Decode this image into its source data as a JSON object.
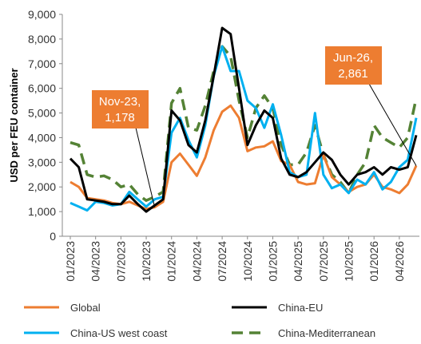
{
  "chart_data": {
    "type": "line",
    "y_label": "USD per FEU container",
    "categories": [
      "01/2023",
      null,
      null,
      "04/2023",
      null,
      null,
      "07/2023",
      null,
      null,
      "10/2023",
      null,
      null,
      "01/2024",
      null,
      null,
      "04/2024",
      null,
      null,
      "07/2024",
      null,
      null,
      "10/2024",
      null,
      null,
      "01/2025",
      null,
      null,
      "04/2025",
      null,
      null,
      "07/2025",
      null,
      null,
      "10/2025",
      null,
      null,
      "01/2026",
      null,
      null,
      "04/2026",
      null,
      null
    ],
    "series": [
      {
        "name": "Global",
        "color": "#ED7D31",
        "dash": false,
        "values": [
          2200,
          2000,
          1550,
          1500,
          1450,
          1350,
          1300,
          1400,
          1250,
          1100,
          1178,
          1400,
          3000,
          3350,
          2900,
          2450,
          3200,
          4300,
          5050,
          5300,
          4800,
          3450,
          3600,
          3650,
          3850,
          3050,
          2900,
          2200,
          2100,
          2150,
          3300,
          2400,
          2100,
          1800,
          2000,
          2100,
          2500,
          2000,
          1900,
          1750,
          2100,
          2861
        ]
      },
      {
        "name": "China-EU",
        "color": "#000000",
        "dash": false,
        "values": [
          3150,
          2800,
          1500,
          1450,
          1400,
          1300,
          1300,
          1650,
          1300,
          1000,
          1250,
          1500,
          5100,
          4700,
          3700,
          3400,
          4700,
          6500,
          8450,
          8200,
          6000,
          3700,
          4500,
          5100,
          4800,
          3150,
          2500,
          2400,
          2600,
          3000,
          3400,
          3100,
          2500,
          2100,
          2500,
          2600,
          2800,
          2500,
          2800,
          2700,
          2800,
          4100
        ]
      },
      {
        "name": "China-US west coast",
        "color": "#00B0F0",
        "dash": false,
        "values": [
          1350,
          1200,
          1050,
          1400,
          1350,
          1250,
          1300,
          1800,
          1500,
          1200,
          1500,
          1600,
          4200,
          4800,
          3900,
          3200,
          4500,
          6500,
          7700,
          6700,
          6700,
          5500,
          5200,
          4400,
          5350,
          4100,
          2600,
          2400,
          2500,
          5000,
          2500,
          1950,
          2100,
          1750,
          2300,
          2100,
          2600,
          1900,
          2200,
          2800,
          3100,
          4800
        ]
      },
      {
        "name": "China-Mediterranean",
        "color": "#548235",
        "dash": true,
        "values": [
          3800,
          3700,
          2500,
          2400,
          2450,
          2300,
          2000,
          2100,
          1700,
          1450,
          1600,
          1800,
          5400,
          6000,
          4400,
          4300,
          5300,
          6700,
          7700,
          7300,
          5500,
          4000,
          5200,
          5700,
          5200,
          3700,
          2900,
          2900,
          3400,
          4500,
          3300,
          2500,
          2200,
          1750,
          2500,
          3000,
          4500,
          4000,
          3800,
          3600,
          4000,
          5600
        ]
      }
    ],
    "ylim": [
      0,
      9000
    ],
    "yticks": [
      0,
      {
        "value": 1000,
        "label": "1,000"
      },
      {
        "value": 2000,
        "label": "2,000"
      },
      {
        "value": 3000,
        "label": "3,000"
      },
      {
        "value": 4000,
        "label": "4,000"
      },
      {
        "value": 5000,
        "label": "5,000"
      },
      {
        "value": 6000,
        "label": "6,000"
      },
      {
        "value": 7000,
        "label": "7,000"
      },
      {
        "value": 8000,
        "label": "8,000"
      },
      {
        "value": 9000,
        "label": "9,000"
      }
    ],
    "grid": false,
    "annotations": [
      {
        "lines": [
          "Nov-23,",
          "1,178"
        ],
        "color": "#ED7D31"
      },
      {
        "lines": [
          "Jun-26,",
          "2,861"
        ],
        "color": "#ED7D31"
      }
    ]
  }
}
